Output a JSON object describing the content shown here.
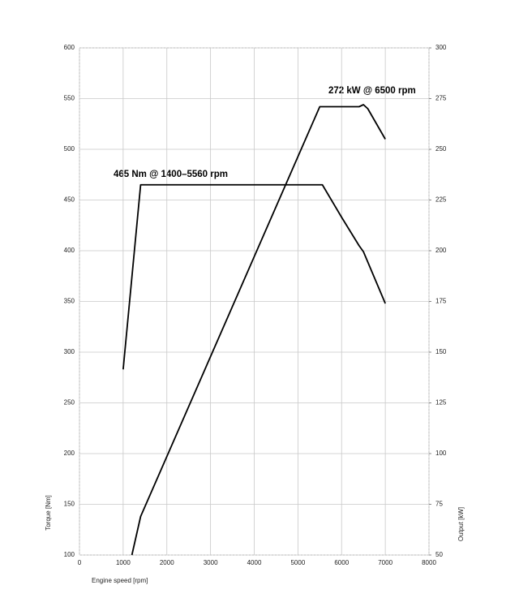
{
  "chart_data": {
    "type": "line",
    "xlabel": "Engine speed [rpm]",
    "ylabel": "Torque [Nm]",
    "y2label": "Output [kW]",
    "annotations": [
      "465 Nm @ 1400–5560 rpm",
      "272 kW @ 6500 rpm"
    ],
    "xlim": [
      0,
      8000
    ],
    "xticks": [
      0,
      1000,
      2000,
      3000,
      4000,
      5000,
      6000,
      7000,
      8000
    ],
    "ylim": [
      100,
      600
    ],
    "yticks": [
      100,
      150,
      200,
      250,
      300,
      350,
      400,
      450,
      500,
      550,
      600
    ],
    "y2lim": [
      50,
      300
    ],
    "y2ticks": [
      50,
      75,
      100,
      125,
      150,
      175,
      200,
      225,
      250,
      275,
      300
    ],
    "grid": true,
    "series": [
      {
        "color": "#000000",
        "x": [
          1000,
          1400,
          5560,
          6000,
          6400,
          6500,
          7000
        ],
        "values": [
          283,
          465,
          465,
          433,
          405,
          399,
          348
        ]
      },
      {
        "color": "#000000",
        "axis": "y2",
        "x": [
          1200,
          1400,
          5500,
          6000,
          6400,
          6500,
          6600,
          7000
        ],
        "values": [
          50,
          69,
          271,
          271,
          271,
          272,
          270,
          255
        ]
      }
    ]
  }
}
